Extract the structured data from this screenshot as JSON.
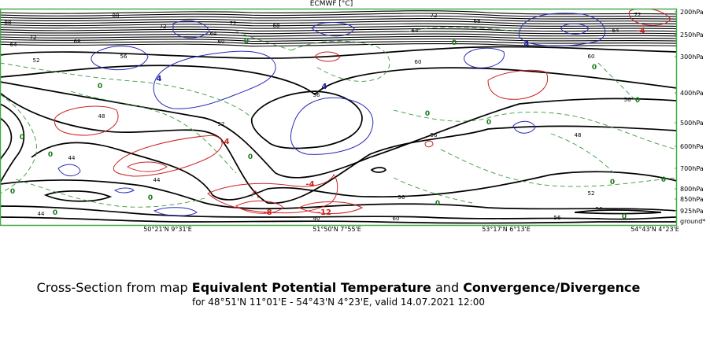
{
  "chart_data": {
    "type": "contour-cross-section",
    "source_label": "ECMWF [°C]",
    "caption": {
      "prefix": "Cross-Section from map ",
      "var1": "Equivalent Potential Temperature",
      "joiner": " and ",
      "var2": "Convergence/Divergence",
      "subtitle": "for 48°51'N 11°01'E - 54°43'N 4°23'E, valid 14.07.2021 12:00"
    },
    "pressure_levels": [
      "200hPa",
      "250hPa",
      "300hPa",
      "400hPa",
      "500hPa",
      "600hPa",
      "700hPa",
      "800hPa",
      "850hPa",
      "925hPa",
      "ground*"
    ],
    "x_ticks": [
      "50°21'N 9°31'E",
      "51°50'N 7°55'E",
      "53°17'N 6°13'E",
      "54°43'N 4°23'E"
    ],
    "colors": {
      "theta_e": "#000000",
      "convergence": "#cc2222",
      "divergence": "#2a2ab8",
      "zero_line": "#3a9a3a",
      "zero_label": "#1a7a1a",
      "frame": "#44aa44"
    },
    "theta_e_labels": [
      "88",
      "72",
      "68",
      "64",
      "60",
      "56",
      "52",
      "48",
      "44",
      "40"
    ],
    "divergence_labels": [
      "4",
      "4",
      "4",
      "0"
    ],
    "convergence_labels": [
      "-4",
      "-4",
      "-8",
      "-12",
      "-4"
    ]
  }
}
